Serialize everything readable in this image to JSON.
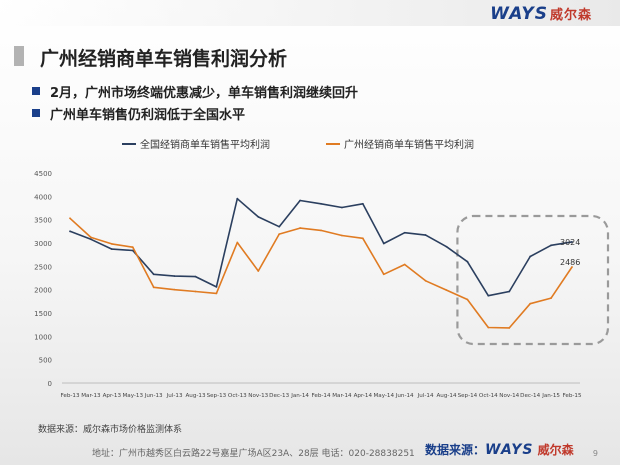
{
  "header": {
    "brand_logo": "WAYS",
    "brand_cn": "威尔森"
  },
  "slide": {
    "title": "广州经销商单车销售利润分析",
    "bullets": [
      "2月，广州市场终端优惠减少，单车销售利润继续回升",
      "广州单车销售仍利润低于全国水平"
    ]
  },
  "chart_data": {
    "type": "line",
    "categories": [
      "Feb-13",
      "Mar-13",
      "Apr-13",
      "May-13",
      "Jun-13",
      "Jul-13",
      "Aug-13",
      "Sep-13",
      "Oct-13",
      "Nov-13",
      "Dec-13",
      "Jan-14",
      "Feb-14",
      "Mar-14",
      "Apr-14",
      "May-14",
      "Jun-14",
      "Jul-14",
      "Aug-14",
      "Sep-14",
      "Oct-14",
      "Nov-14",
      "Dec-14",
      "Jan-15",
      "Feb-15"
    ],
    "series": [
      {
        "name": "全国经销商单车销售平均利润",
        "color": "#2b3f5f",
        "values": [
          3250,
          3080,
          2870,
          2840,
          2330,
          2290,
          2280,
          2060,
          3950,
          3560,
          3350,
          3910,
          3840,
          3760,
          3840,
          2990,
          3220,
          3170,
          2920,
          2600,
          1870,
          1960,
          2710,
          2950,
          3024
        ]
      },
      {
        "name": "广州经销商单车销售平均利润",
        "color": "#e07b22",
        "values": [
          3530,
          3120,
          2980,
          2910,
          2050,
          2000,
          1960,
          1920,
          3010,
          2400,
          3190,
          3320,
          3270,
          3160,
          3100,
          2330,
          2540,
          2190,
          1990,
          1790,
          1190,
          1180,
          1700,
          1820,
          2486
        ]
      }
    ],
    "data_labels": [
      {
        "series": 0,
        "index": 24,
        "text": "3024"
      },
      {
        "series": 1,
        "index": 24,
        "text": "2486"
      }
    ],
    "ylim": [
      0,
      4500
    ],
    "yticks": [
      0,
      500,
      1000,
      1500,
      2000,
      2500,
      3000,
      3500,
      4000,
      4500
    ],
    "grid": false,
    "legend_position": "top",
    "highlight": {
      "type": "dashed-rounded-box",
      "from_category": "Sep-14",
      "to_category": "Feb-15"
    }
  },
  "footer": {
    "source": "数据来源：威尔森市场价格监测体系",
    "address": "地址：广州市越秀区白云路22号嘉星广场A区23A、28层   电话：020-28838251",
    "brand_prefix": "数据来源：",
    "brand_logo": "WAYS",
    "brand_cn": "威尔森",
    "page_number": "9"
  }
}
